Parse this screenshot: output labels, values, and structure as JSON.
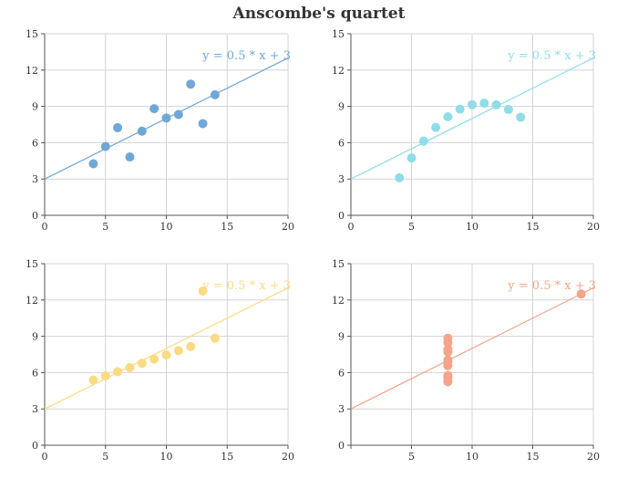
{
  "chart_data": {
    "type": "scatter",
    "title": "Anscombe's quartet",
    "xlim": [
      0,
      20
    ],
    "ylim": [
      0,
      15
    ],
    "x_ticks": [
      0,
      5,
      10,
      15,
      20
    ],
    "y_ticks": [
      0,
      3,
      6,
      9,
      12,
      15
    ],
    "grid": true,
    "panels": [
      {
        "color": "#6fa8d6",
        "equation": "y = 0.5 * x + 3",
        "x_ticks": [
          0,
          5,
          10,
          15,
          20
        ],
        "points": [
          [
            10,
            8.04
          ],
          [
            8,
            6.95
          ],
          [
            13,
            7.58
          ],
          [
            9,
            8.81
          ],
          [
            11,
            8.33
          ],
          [
            14,
            9.96
          ],
          [
            6,
            7.24
          ],
          [
            4,
            4.26
          ],
          [
            12,
            10.84
          ],
          [
            7,
            4.82
          ],
          [
            5,
            5.68
          ]
        ]
      },
      {
        "color": "#8fdde6",
        "equation": "y = 0.5 * x + 3",
        "x_ticks": [
          0,
          5,
          10,
          15,
          20
        ],
        "points": [
          [
            10,
            9.14
          ],
          [
            8,
            8.14
          ],
          [
            13,
            8.74
          ],
          [
            9,
            8.77
          ],
          [
            11,
            9.26
          ],
          [
            14,
            8.1
          ],
          [
            6,
            6.13
          ],
          [
            4,
            3.1
          ],
          [
            12,
            9.13
          ],
          [
            7,
            7.26
          ],
          [
            5,
            4.74
          ]
        ]
      },
      {
        "color": "#fadb83",
        "equation": "y = 0.5 * x + 3",
        "x_ticks": [
          0,
          5,
          10,
          15,
          20
        ],
        "points": [
          [
            10,
            7.46
          ],
          [
            8,
            6.77
          ],
          [
            13,
            12.74
          ],
          [
            9,
            7.11
          ],
          [
            11,
            7.81
          ],
          [
            14,
            8.84
          ],
          [
            6,
            6.08
          ],
          [
            4,
            5.39
          ],
          [
            12,
            8.15
          ],
          [
            7,
            6.42
          ],
          [
            5,
            5.73
          ]
        ]
      },
      {
        "color": "#f4a48a",
        "equation": "y = 0.5 * x + 3",
        "x_ticks": [
          5,
          10,
          15,
          20
        ],
        "points": [
          [
            8,
            6.58
          ],
          [
            8,
            5.76
          ],
          [
            8,
            7.71
          ],
          [
            8,
            8.84
          ],
          [
            8,
            8.47
          ],
          [
            8,
            7.04
          ],
          [
            8,
            5.25
          ],
          [
            19,
            12.5
          ],
          [
            8,
            5.56
          ],
          [
            8,
            7.91
          ],
          [
            8,
            6.89
          ]
        ]
      }
    ]
  }
}
